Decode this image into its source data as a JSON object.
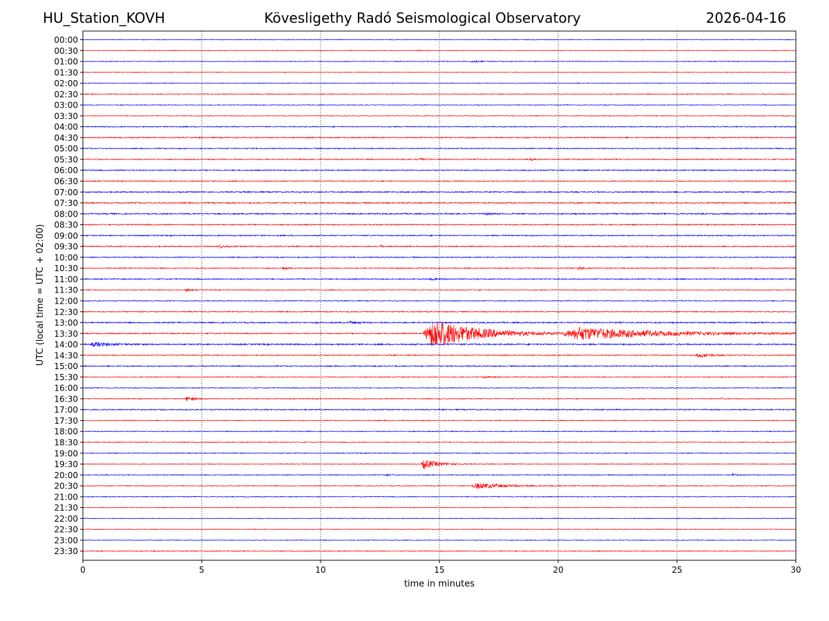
{
  "header": {
    "station": "HU_Station_KOVH",
    "title": "Kövesligethy Radó Seismological Observatory",
    "date": "2026-04-16"
  },
  "chart_data": {
    "type": "line",
    "title": "Kövesligethy Radó Seismological Observatory",
    "xlabel": "time in minutes",
    "ylabel": "UTC (local time = UTC + 02:00)",
    "xlim": [
      0,
      30
    ],
    "x_ticks": [
      0,
      5,
      10,
      15,
      20,
      25,
      30
    ],
    "vertical_gridlines": [
      5,
      10,
      15,
      20,
      25
    ],
    "colors": {
      "even_trace": "#0000ff",
      "odd_trace": "#ff0000"
    },
    "rows": [
      {
        "label": "00:00",
        "noise": 0.5,
        "events": []
      },
      {
        "label": "00:30",
        "noise": 0.5,
        "events": []
      },
      {
        "label": "01:00",
        "noise": 0.5,
        "events": [
          {
            "t": 16.3,
            "amp": 1.8,
            "dur": 0.6
          }
        ]
      },
      {
        "label": "01:30",
        "noise": 0.5,
        "events": []
      },
      {
        "label": "02:00",
        "noise": 0.5,
        "events": []
      },
      {
        "label": "02:30",
        "noise": 0.6,
        "events": []
      },
      {
        "label": "03:00",
        "noise": 0.5,
        "events": []
      },
      {
        "label": "03:30",
        "noise": 0.5,
        "events": []
      },
      {
        "label": "04:00",
        "noise": 0.7,
        "events": []
      },
      {
        "label": "04:30",
        "noise": 0.8,
        "events": []
      },
      {
        "label": "05:00",
        "noise": 0.7,
        "events": []
      },
      {
        "label": "05:30",
        "noise": 0.7,
        "events": [
          {
            "t": 14.1,
            "amp": 2.0,
            "dur": 0.4
          },
          {
            "t": 18.8,
            "amp": 1.5,
            "dur": 0.3
          }
        ]
      },
      {
        "label": "06:00",
        "noise": 0.8,
        "events": []
      },
      {
        "label": "06:30",
        "noise": 0.7,
        "events": []
      },
      {
        "label": "07:00",
        "noise": 0.9,
        "events": []
      },
      {
        "label": "07:30",
        "noise": 0.9,
        "events": []
      },
      {
        "label": "08:00",
        "noise": 0.9,
        "events": [
          {
            "t": 16.8,
            "amp": 1.5,
            "dur": 0.5
          }
        ]
      },
      {
        "label": "08:30",
        "noise": 0.8,
        "events": []
      },
      {
        "label": "09:00",
        "noise": 0.8,
        "events": []
      },
      {
        "label": "09:30",
        "noise": 0.8,
        "events": [
          {
            "t": 5.7,
            "amp": 2.2,
            "dur": 0.4
          },
          {
            "t": 12.5,
            "amp": 1.5,
            "dur": 0.3
          }
        ]
      },
      {
        "label": "10:00",
        "noise": 0.7,
        "events": []
      },
      {
        "label": "10:30",
        "noise": 0.7,
        "events": [
          {
            "t": 8.4,
            "amp": 2.0,
            "dur": 0.3
          },
          {
            "t": 20.8,
            "amp": 2.2,
            "dur": 0.5
          }
        ]
      },
      {
        "label": "11:00",
        "noise": 0.8,
        "events": [
          {
            "t": 14.6,
            "amp": 1.6,
            "dur": 0.4
          }
        ]
      },
      {
        "label": "11:30",
        "noise": 0.6,
        "events": [
          {
            "t": 4.3,
            "amp": 2.6,
            "dur": 0.3
          }
        ]
      },
      {
        "label": "12:00",
        "noise": 0.6,
        "events": []
      },
      {
        "label": "12:30",
        "noise": 0.7,
        "events": []
      },
      {
        "label": "13:00",
        "noise": 0.9,
        "events": [
          {
            "t": 11.2,
            "amp": 1.6,
            "dur": 0.6
          }
        ]
      },
      {
        "label": "13:30",
        "noise": 0.8,
        "events": [
          {
            "t": 14.3,
            "amp": 22.0,
            "dur": 3.8
          },
          {
            "t": 20.1,
            "amp": 9.0,
            "dur": 7.0
          }
        ]
      },
      {
        "label": "14:00",
        "noise": 1.0,
        "events": [
          {
            "t": 0.3,
            "amp": 2.8,
            "dur": 1.5
          }
        ]
      },
      {
        "label": "14:30",
        "noise": 0.7,
        "events": [
          {
            "t": 25.8,
            "amp": 3.5,
            "dur": 0.9
          }
        ]
      },
      {
        "label": "15:00",
        "noise": 0.8,
        "events": []
      },
      {
        "label": "15:30",
        "noise": 0.6,
        "events": [
          {
            "t": 16.8,
            "amp": 1.6,
            "dur": 0.5
          }
        ]
      },
      {
        "label": "16:00",
        "noise": 0.6,
        "events": []
      },
      {
        "label": "16:30",
        "noise": 0.6,
        "events": [
          {
            "t": 4.3,
            "amp": 3.4,
            "dur": 0.7
          },
          {
            "t": 26.8,
            "amp": 1.4,
            "dur": 0.3
          }
        ]
      },
      {
        "label": "17:00",
        "noise": 0.8,
        "events": []
      },
      {
        "label": "17:30",
        "noise": 0.6,
        "events": []
      },
      {
        "label": "18:00",
        "noise": 0.6,
        "events": []
      },
      {
        "label": "18:30",
        "noise": 0.6,
        "events": []
      },
      {
        "label": "19:00",
        "noise": 0.6,
        "events": []
      },
      {
        "label": "19:30",
        "noise": 0.6,
        "events": [
          {
            "t": 14.2,
            "amp": 6.5,
            "dur": 1.3
          }
        ]
      },
      {
        "label": "20:00",
        "noise": 0.6,
        "events": [
          {
            "t": 12.7,
            "amp": 1.5,
            "dur": 0.4
          },
          {
            "t": 27.3,
            "amp": 1.5,
            "dur": 0.4
          }
        ]
      },
      {
        "label": "20:30",
        "noise": 0.6,
        "events": [
          {
            "t": 16.3,
            "amp": 4.0,
            "dur": 2.6
          }
        ]
      },
      {
        "label": "21:00",
        "noise": 0.6,
        "events": []
      },
      {
        "label": "21:30",
        "noise": 0.5,
        "events": []
      },
      {
        "label": "22:00",
        "noise": 0.5,
        "events": []
      },
      {
        "label": "22:30",
        "noise": 0.5,
        "events": []
      },
      {
        "label": "23:00",
        "noise": 0.5,
        "events": []
      },
      {
        "label": "23:30",
        "noise": 0.6,
        "events": []
      }
    ]
  }
}
